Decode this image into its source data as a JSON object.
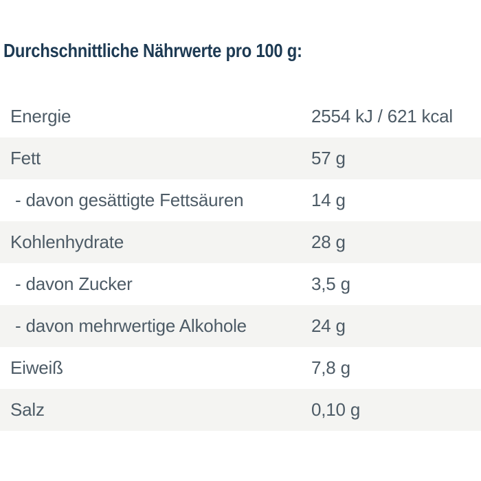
{
  "heading": "Durchschnittliche Nährwerte pro 100 g:",
  "colors": {
    "page_background": "#ffffff",
    "heading_text": "#1d3a53",
    "row_text": "#4d5b66",
    "stripe_background": "#f4f4f2"
  },
  "nutrition_table": {
    "rows": [
      {
        "label": "Energie",
        "value": "2554 kJ / 621 kcal",
        "indent": false
      },
      {
        "label": "Fett",
        "value": "57 g",
        "indent": false
      },
      {
        "label": "- davon gesättigte Fettsäuren",
        "value": "14 g",
        "indent": true
      },
      {
        "label": "Kohlenhydrate",
        "value": "28 g",
        "indent": false
      },
      {
        "label": "- davon Zucker",
        "value": "3,5 g",
        "indent": true
      },
      {
        "label": "- davon mehrwertige Alkohole",
        "value": "24 g",
        "indent": true
      },
      {
        "label": "Eiweiß",
        "value": "7,8 g",
        "indent": false
      },
      {
        "label": "Salz",
        "value": "0,10 g",
        "indent": false
      }
    ]
  }
}
